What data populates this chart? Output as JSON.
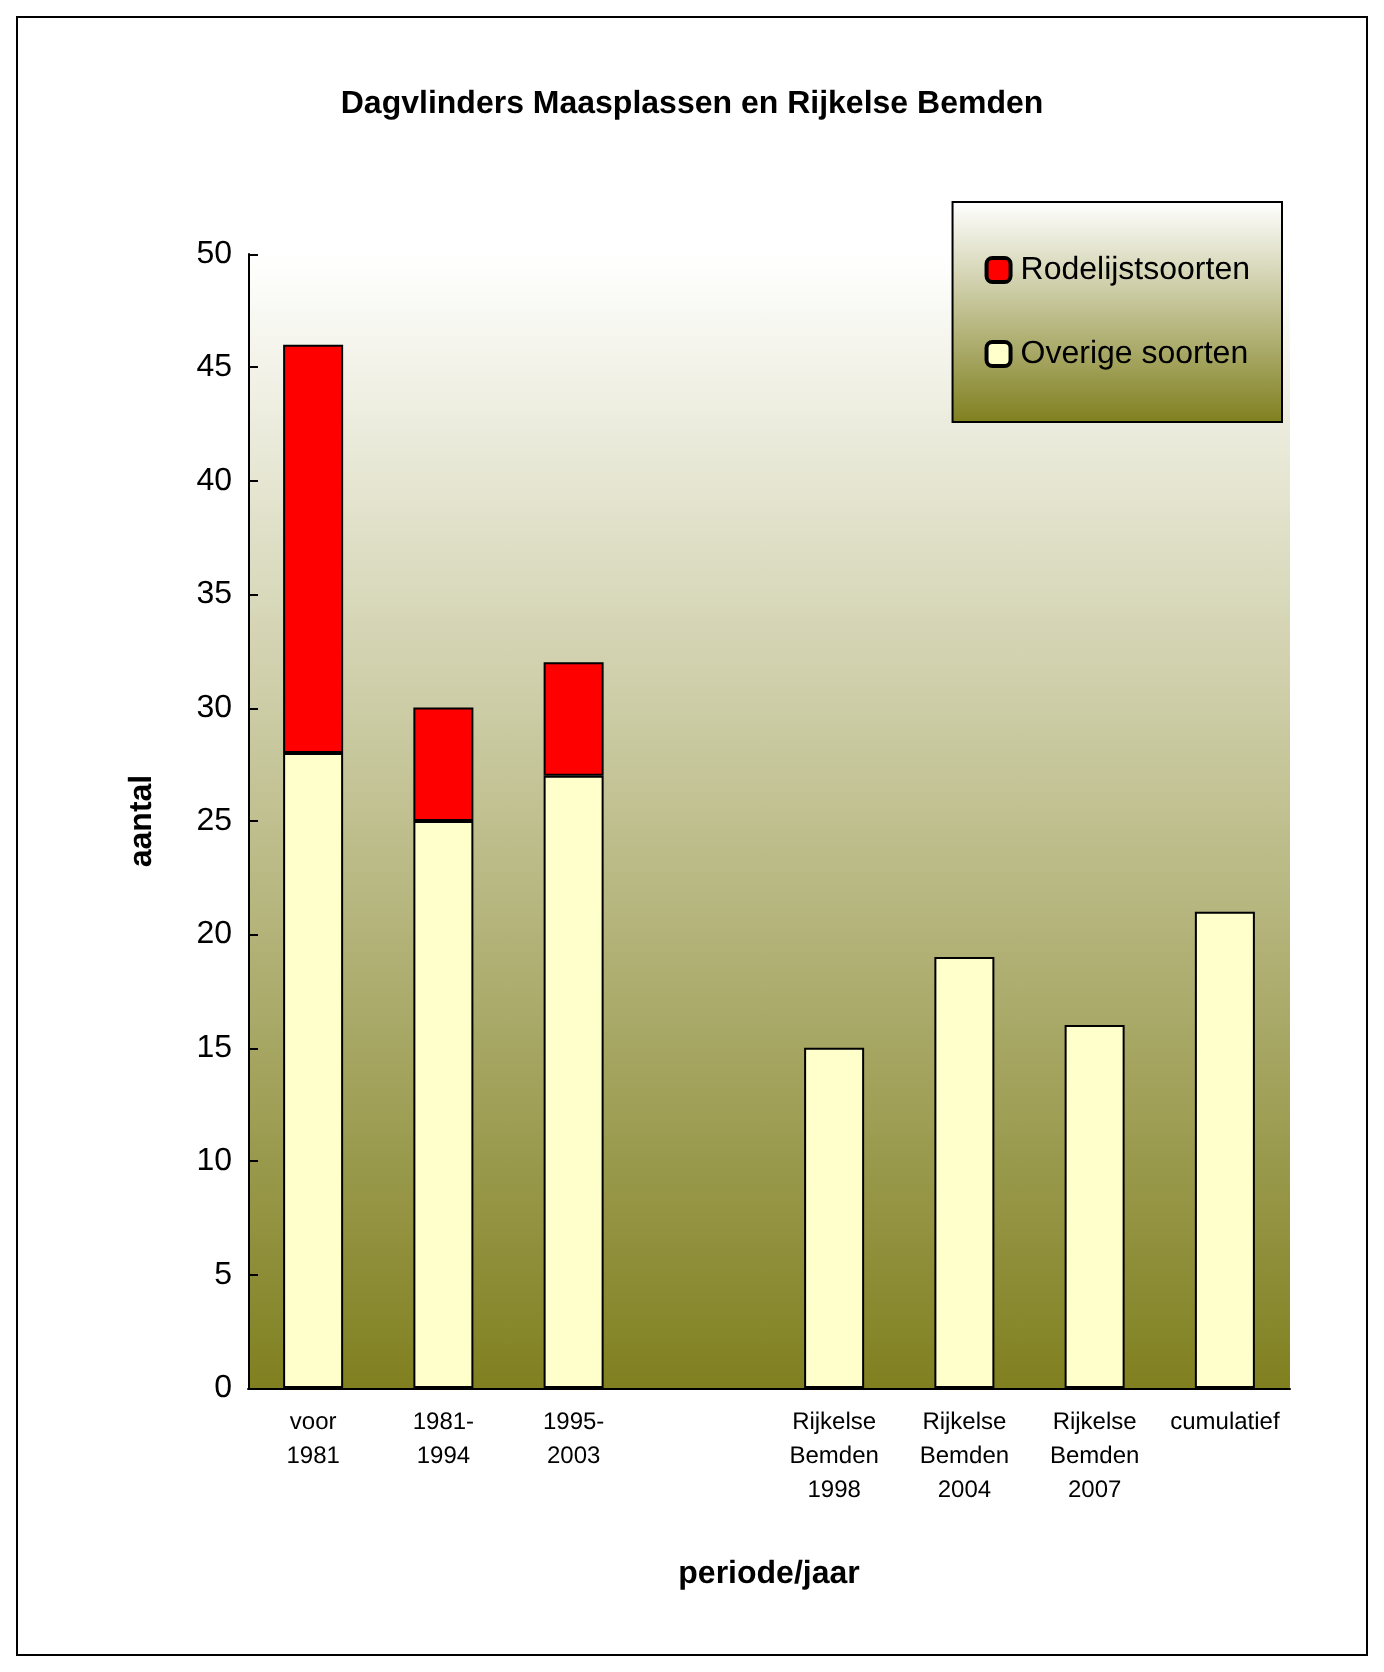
{
  "chart_data": {
    "type": "bar",
    "title": "Dagvlinders Maasplassen en Rijkelse Bemden",
    "xlabel": "periode/jaar",
    "ylabel": "aantal",
    "categories": [
      "voor 1981",
      "1981-1994",
      "1995-2003",
      null,
      "Rijkelse Bemden 1998",
      "Rijkelse Bemden 2004",
      "Rijkelse Bemden 2007",
      "cumulatief"
    ],
    "stacked": true,
    "series": [
      {
        "name": "Overige soorten",
        "color": "#ffffcc",
        "values": [
          28,
          25,
          27,
          null,
          15,
          19,
          16,
          21
        ]
      },
      {
        "name": "Rodelijstsoorten",
        "color": "#ff0000",
        "values": [
          18,
          5,
          5,
          null,
          null,
          null,
          null,
          null
        ]
      }
    ],
    "ylim": [
      0,
      50
    ],
    "yticks": [
      0,
      5,
      10,
      15,
      20,
      25,
      30,
      35,
      40,
      45,
      50
    ],
    "grid": false,
    "legend": "top right"
  }
}
